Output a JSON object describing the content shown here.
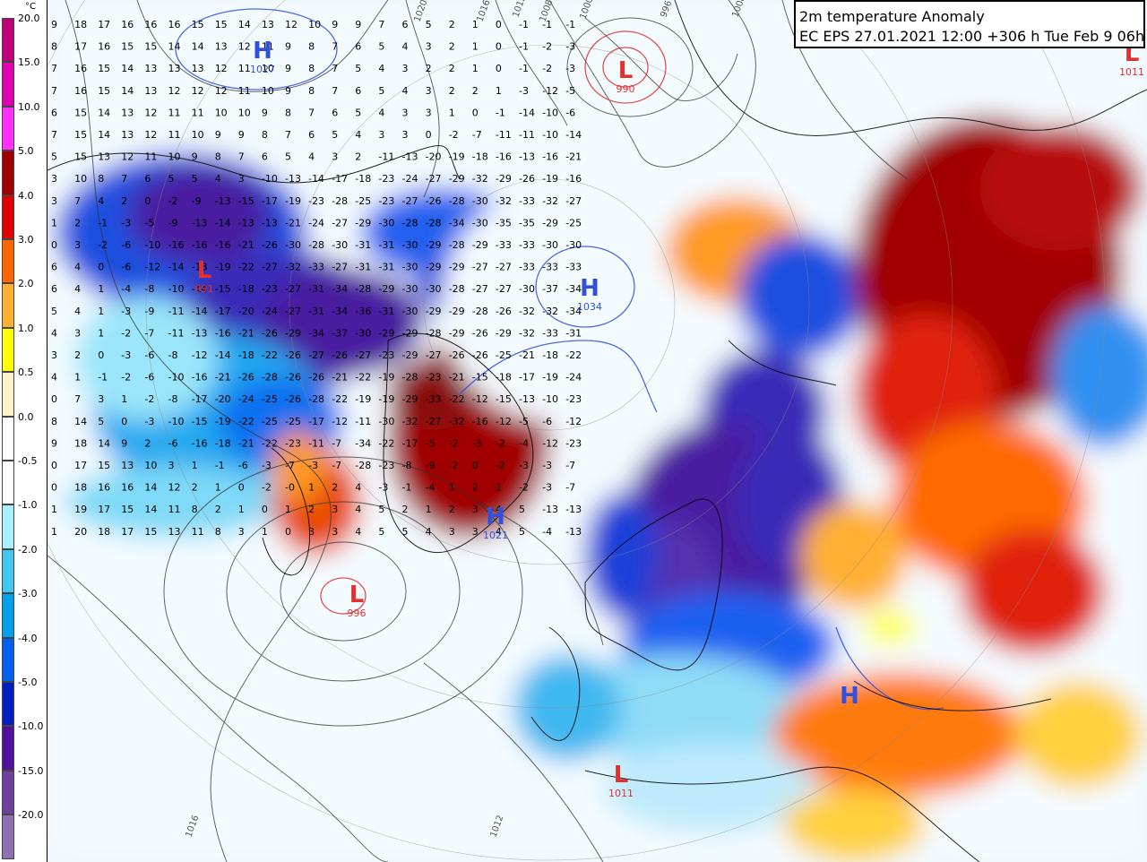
{
  "title": {
    "line1": "2m temperature Anomaly",
    "line2": "EC EPS 27.01.2021 12:00 +306 h Tue Feb 9 06h"
  },
  "legend": {
    "unit": "°C",
    "ticks": [
      "20.0",
      "15.0",
      "10.0",
      "5.0",
      "4.0",
      "3.0",
      "2.0",
      "1.0",
      "0.5",
      "0.0",
      "-0.5",
      "-1.0",
      "-2.0",
      "-3.0",
      "-4.0",
      "-5.0",
      "-10.0",
      "-15.0",
      "-20.0"
    ],
    "colors": [
      "#c0007a",
      "#e000b0",
      "#ff30ff",
      "#a00000",
      "#e00000",
      "#ff6600",
      "#ffb030",
      "#ffff00",
      "#fff0c8",
      "#ffffff",
      "#ffffff",
      "#a8f0ff",
      "#40c8f0",
      "#00a0f0",
      "#0060f0",
      "#0020c0",
      "#5010a0",
      "#7040a0",
      "#9070b0"
    ]
  },
  "pressure_centers": [
    {
      "type": "H",
      "value": "1027",
      "color": "#3050e0"
    },
    {
      "type": "L",
      "value": "990",
      "color": "#e03030"
    },
    {
      "type": "H",
      "value": "1034",
      "color": "#3050e0"
    },
    {
      "type": "L",
      "value": "991",
      "color": "#e03030"
    },
    {
      "type": "L",
      "value": "996",
      "color": "#e03030"
    },
    {
      "type": "H",
      "value": "1021",
      "color": "#3050e0"
    },
    {
      "type": "L",
      "value": "1011",
      "color": "#e03030"
    },
    {
      "type": "H",
      "value": "",
      "color": "#3050e0"
    },
    {
      "type": "L",
      "value": "1011",
      "color": "#e03030"
    }
  ],
  "isobar_labels": [
    "1020",
    "1016",
    "1012",
    "1008",
    "1000",
    "996",
    "1008",
    "1012",
    "1016"
  ],
  "grid_rows": [
    [
      "9",
      "18",
      "17",
      "16",
      "16",
      "16",
      "15",
      "15",
      "14",
      "13",
      "12",
      "10",
      "9",
      "9",
      "7",
      "6",
      "5",
      "2",
      "1",
      "0",
      "-1",
      "-1",
      "-1"
    ],
    [
      "8",
      "17",
      "16",
      "15",
      "15",
      "14",
      "14",
      "13",
      "12",
      "11",
      "9",
      "8",
      "7",
      "6",
      "5",
      "4",
      "3",
      "2",
      "1",
      "0",
      "-1",
      "-2",
      "-3"
    ],
    [
      "7",
      "16",
      "15",
      "14",
      "13",
      "13",
      "13",
      "12",
      "11",
      "10",
      "9",
      "8",
      "7",
      "5",
      "4",
      "3",
      "2",
      "2",
      "1",
      "0",
      "-1",
      "-2",
      "-3"
    ],
    [
      "7",
      "16",
      "15",
      "14",
      "13",
      "12",
      "12",
      "12",
      "11",
      "10",
      "9",
      "8",
      "7",
      "6",
      "5",
      "4",
      "3",
      "2",
      "2",
      "1",
      "-3",
      "-12",
      "-5"
    ],
    [
      "6",
      "15",
      "14",
      "13",
      "12",
      "11",
      "11",
      "10",
      "10",
      "9",
      "8",
      "7",
      "6",
      "5",
      "4",
      "3",
      "3",
      "1",
      "0",
      "-1",
      "-14",
      "-10",
      "-6"
    ],
    [
      "7",
      "15",
      "14",
      "13",
      "12",
      "11",
      "10",
      "9",
      "9",
      "8",
      "7",
      "6",
      "5",
      "4",
      "3",
      "3",
      "0",
      "-2",
      "-7",
      "-11",
      "-11",
      "-10",
      "-14"
    ],
    [
      "5",
      "15",
      "13",
      "12",
      "11",
      "10",
      "9",
      "8",
      "7",
      "6",
      "5",
      "4",
      "3",
      "2",
      "-11",
      "-13",
      "-20",
      "-19",
      "-18",
      "-16",
      "-13",
      "-16",
      "-21"
    ],
    [
      "3",
      "10",
      "8",
      "7",
      "6",
      "5",
      "5",
      "4",
      "3",
      "-10",
      "-13",
      "-14",
      "-17",
      "-18",
      "-23",
      "-24",
      "-27",
      "-29",
      "-32",
      "-29",
      "-26",
      "-19",
      "-16"
    ],
    [
      "3",
      "7",
      "4",
      "2",
      "0",
      "-2",
      "-9",
      "-13",
      "-15",
      "-17",
      "-19",
      "-23",
      "-28",
      "-25",
      "-23",
      "-27",
      "-26",
      "-28",
      "-30",
      "-32",
      "-33",
      "-32",
      "-27"
    ],
    [
      "1",
      "2",
      "-1",
      "-3",
      "-5",
      "-9",
      "-13",
      "-14",
      "-13",
      "-13",
      "-21",
      "-24",
      "-27",
      "-29",
      "-30",
      "-28",
      "-28",
      "-34",
      "-30",
      "-35",
      "-35",
      "-29",
      "-25"
    ],
    [
      "0",
      "3",
      "-2",
      "-6",
      "-10",
      "-16",
      "-16",
      "-16",
      "-21",
      "-26",
      "-30",
      "-28",
      "-30",
      "-31",
      "-31",
      "-30",
      "-29",
      "-28",
      "-29",
      "-33",
      "-33",
      "-30",
      "-30"
    ],
    [
      "6",
      "4",
      "0",
      "-6",
      "-12",
      "-14",
      "-18",
      "-19",
      "-22",
      "-27",
      "-32",
      "-33",
      "-27",
      "-31",
      "-31",
      "-30",
      "-29",
      "-29",
      "-27",
      "-27",
      "-33",
      "-33",
      "-33"
    ],
    [
      "6",
      "4",
      "1",
      "-4",
      "-8",
      "-10",
      "-14",
      "-15",
      "-18",
      "-23",
      "-27",
      "-31",
      "-34",
      "-28",
      "-29",
      "-30",
      "-30",
      "-28",
      "-27",
      "-27",
      "-30",
      "-37",
      "-34"
    ],
    [
      "5",
      "4",
      "1",
      "-3",
      "-9",
      "-11",
      "-14",
      "-17",
      "-20",
      "-24",
      "-27",
      "-31",
      "-34",
      "-36",
      "-31",
      "-30",
      "-29",
      "-29",
      "-28",
      "-26",
      "-32",
      "-32",
      "-34"
    ],
    [
      "4",
      "3",
      "1",
      "-2",
      "-7",
      "-11",
      "-13",
      "-16",
      "-21",
      "-26",
      "-29",
      "-34",
      "-37",
      "-30",
      "-29",
      "-29",
      "-28",
      "-29",
      "-26",
      "-29",
      "-32",
      "-33",
      "-31"
    ],
    [
      "3",
      "2",
      "0",
      "-3",
      "-6",
      "-8",
      "-12",
      "-14",
      "-18",
      "-22",
      "-26",
      "-27",
      "-26",
      "-27",
      "-23",
      "-29",
      "-27",
      "-26",
      "-26",
      "-25",
      "-21",
      "-18",
      "-22"
    ],
    [
      "4",
      "1",
      "-1",
      "-2",
      "-6",
      "-10",
      "-16",
      "-21",
      "-26",
      "-28",
      "-26",
      "-26",
      "-21",
      "-22",
      "-19",
      "-28",
      "-23",
      "-21",
      "-15",
      "-18",
      "-17",
      "-19",
      "-24"
    ],
    [
      "0",
      "7",
      "3",
      "1",
      "-2",
      "-8",
      "-17",
      "-20",
      "-24",
      "-25",
      "-26",
      "-28",
      "-22",
      "-19",
      "-19",
      "-29",
      "-33",
      "-22",
      "-12",
      "-15",
      "-13",
      "-10",
      "-23"
    ],
    [
      "8",
      "14",
      "5",
      "0",
      "-3",
      "-10",
      "-15",
      "-19",
      "-22",
      "-25",
      "-25",
      "-17",
      "-12",
      "-11",
      "-30",
      "-32",
      "-27",
      "-32",
      "-16",
      "-12",
      "-5",
      "-6",
      "-12"
    ],
    [
      "9",
      "18",
      "14",
      "9",
      "2",
      "-6",
      "-16",
      "-18",
      "-21",
      "-22",
      "-23",
      "-11",
      "-7",
      "-34",
      "-22",
      "-17",
      "-5",
      "-2",
      "-3",
      "-2",
      "-4",
      "-12",
      "-23"
    ],
    [
      "0",
      "17",
      "15",
      "13",
      "10",
      "3",
      "1",
      "-1",
      "-6",
      "-3",
      "-7",
      "-3",
      "-7",
      "-28",
      "-23",
      "-8",
      "-9",
      "-2",
      "0",
      "-2",
      "-3",
      "-3",
      "-7"
    ],
    [
      "0",
      "18",
      "16",
      "16",
      "14",
      "12",
      "2",
      "1",
      "0",
      "-2",
      "-0",
      "1",
      "2",
      "4",
      "-3",
      "-1",
      "-4",
      "1",
      "2",
      "1",
      "-2",
      "-3",
      "-7"
    ],
    [
      "1",
      "19",
      "17",
      "15",
      "14",
      "11",
      "8",
      "2",
      "1",
      "0",
      "1",
      "2",
      "3",
      "4",
      "5",
      "2",
      "1",
      "2",
      "3",
      "4",
      "5",
      "-13",
      "-13"
    ],
    [
      "1",
      "20",
      "18",
      "17",
      "15",
      "13",
      "11",
      "8",
      "3",
      "1",
      "0",
      "3",
      "3",
      "4",
      "5",
      "5",
      "4",
      "3",
      "3",
      "4",
      "5",
      "-4",
      "-13"
    ]
  ]
}
